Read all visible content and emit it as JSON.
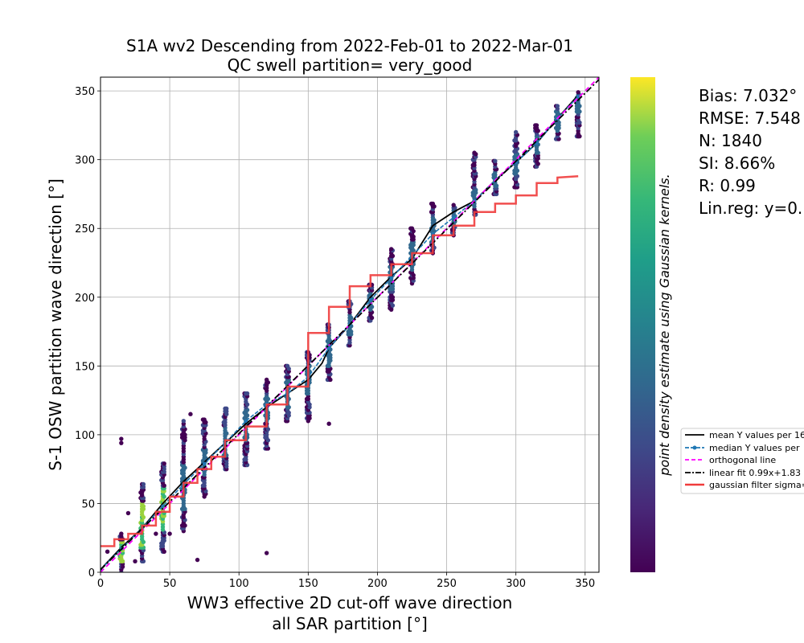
{
  "chart_data": {
    "type": "scatter",
    "title_line1": "S1A wv2 Descending from 2022-Feb-01 to 2022-Mar-01",
    "title_line2": "QC swell partition= very_good",
    "xlabel_line1": "WW3 effective 2D cut-off wave direction",
    "xlabel_line2": "all SAR partition [°]",
    "ylabel": "S-1 OSW partition wave direction [°]",
    "colorbar_label": "point density estimate using Gaussian kernels.",
    "xlim": [
      0,
      360
    ],
    "ylim": [
      0,
      360
    ],
    "xticks": [
      0,
      50,
      100,
      150,
      200,
      250,
      300,
      350
    ],
    "yticks": [
      0,
      50,
      100,
      150,
      200,
      250,
      300,
      350
    ],
    "grid": true,
    "colormap": "viridis",
    "stats": {
      "bias": "Bias: 7.032°",
      "rmse": "RMSE: 7.548",
      "n": "N: 1840",
      "si": "SI: 8.66%",
      "r": "R: 0.99",
      "linreg": "Lin.reg: y=0."
    },
    "legend_position": "right",
    "series": [
      {
        "name": "mean Y values per 16",
        "color": "#000000",
        "style": "solid",
        "x": [
          0,
          15,
          30,
          45,
          60,
          75,
          90,
          105,
          120,
          135,
          150,
          160,
          165,
          180,
          195,
          210,
          225,
          240,
          255,
          270,
          285,
          300,
          315,
          330,
          345
        ],
        "y": [
          2,
          18,
          32,
          50,
          66,
          80,
          94,
          108,
          120,
          130,
          140,
          152,
          163,
          180,
          200,
          215,
          228,
          252,
          262,
          270,
          285,
          298,
          312,
          330,
          347
        ]
      },
      {
        "name": "median Y values per",
        "color": "#1f77b4",
        "style": "dashed-marker",
        "x": [
          0,
          15,
          30,
          45,
          60,
          75,
          90,
          105,
          120,
          135,
          150,
          165,
          180,
          195,
          210,
          225,
          240,
          255,
          270,
          285,
          300,
          315,
          330,
          345
        ],
        "y": [
          2,
          17,
          32,
          48,
          64,
          79,
          94,
          110,
          122,
          130,
          142,
          163,
          180,
          198,
          214,
          230,
          246,
          258,
          270,
          285,
          298,
          312,
          330,
          346
        ]
      },
      {
        "name": "orthogonal line",
        "color": "#ff00ff",
        "style": "dashed",
        "x": [
          0,
          360
        ],
        "y": [
          0,
          360
        ]
      },
      {
        "name": "linear fit 0.99x+1.83",
        "color": "#000000",
        "style": "dashdot",
        "x": [
          0,
          360
        ],
        "y": [
          1.83,
          358.23
        ]
      },
      {
        "name": "gaussian filter sigma=",
        "color": "#f03c3c",
        "style": "solid-thick",
        "x": [
          0,
          10,
          10,
          20,
          20,
          30,
          30,
          40,
          40,
          50,
          50,
          60,
          60,
          70,
          70,
          80,
          80,
          90,
          90,
          105,
          105,
          120,
          120,
          135,
          135,
          150,
          150,
          165,
          165,
          180,
          180,
          195,
          195,
          210,
          210,
          225,
          225,
          240,
          240,
          255,
          255,
          270,
          270,
          285,
          285,
          300,
          300,
          315,
          315,
          330,
          330,
          345
        ],
        "y": [
          19,
          19,
          24,
          24,
          28,
          28,
          34,
          34,
          44,
          44,
          55,
          55,
          65,
          65,
          75,
          75,
          84,
          84,
          96,
          96,
          106,
          106,
          122,
          122,
          135,
          135,
          174,
          174,
          193,
          193,
          208,
          208,
          216,
          216,
          224,
          224,
          232,
          232,
          245,
          245,
          252,
          252,
          262,
          262,
          268,
          268,
          274,
          274,
          283,
          283,
          287,
          288
        ]
      }
    ],
    "scatter_columns": [
      {
        "x": 15,
        "y_from": 0,
        "y_to": 28,
        "dense_from": 8,
        "dense_to": 22
      },
      {
        "x": 30,
        "y_from": 8,
        "y_to": 64,
        "dense_from": 18,
        "dense_to": 50
      },
      {
        "x": 45,
        "y_from": 15,
        "y_to": 80,
        "dense_from": 30,
        "dense_to": 62
      },
      {
        "x": 60,
        "y_from": 30,
        "y_to": 110,
        "dense_from": 45,
        "dense_to": 78
      },
      {
        "x": 75,
        "y_from": 55,
        "y_to": 112,
        "dense_from": 70,
        "dense_to": 90
      },
      {
        "x": 90,
        "y_from": 75,
        "y_to": 120,
        "dense_from": 85,
        "dense_to": 105
      },
      {
        "x": 105,
        "y_from": 78,
        "y_to": 130,
        "dense_from": 95,
        "dense_to": 118
      },
      {
        "x": 120,
        "y_from": 90,
        "y_to": 140,
        "dense_from": 110,
        "dense_to": 128
      },
      {
        "x": 135,
        "y_from": 110,
        "y_to": 150,
        "dense_from": 120,
        "dense_to": 140
      },
      {
        "x": 150,
        "y_from": 110,
        "y_to": 160,
        "dense_from": 130,
        "dense_to": 150
      },
      {
        "x": 165,
        "y_from": 140,
        "y_to": 180,
        "dense_from": 150,
        "dense_to": 172
      },
      {
        "x": 180,
        "y_from": 165,
        "y_to": 198,
        "dense_from": 172,
        "dense_to": 188
      },
      {
        "x": 195,
        "y_from": 183,
        "y_to": 210,
        "dense_from": 190,
        "dense_to": 204
      },
      {
        "x": 210,
        "y_from": 192,
        "y_to": 235,
        "dense_from": 205,
        "dense_to": 222
      },
      {
        "x": 225,
        "y_from": 210,
        "y_to": 250,
        "dense_from": 220,
        "dense_to": 240
      },
      {
        "x": 240,
        "y_from": 232,
        "y_to": 268,
        "dense_from": 240,
        "dense_to": 258
      },
      {
        "x": 255,
        "y_from": 245,
        "y_to": 268,
        "dense_from": 252,
        "dense_to": 264
      },
      {
        "x": 270,
        "y_from": 260,
        "y_to": 305,
        "dense_from": 265,
        "dense_to": 278
      },
      {
        "x": 285,
        "y_from": 275,
        "y_to": 300,
        "dense_from": 280,
        "dense_to": 292
      },
      {
        "x": 300,
        "y_from": 280,
        "y_to": 320,
        "dense_from": 290,
        "dense_to": 305
      },
      {
        "x": 315,
        "y_from": 295,
        "y_to": 325,
        "dense_from": 305,
        "dense_to": 318
      },
      {
        "x": 330,
        "y_from": 315,
        "y_to": 340,
        "dense_from": 320,
        "dense_to": 335
      },
      {
        "x": 345,
        "y_from": 317,
        "y_to": 350,
        "dense_from": 335,
        "dense_to": 348
      }
    ],
    "outliers": [
      {
        "x": 15,
        "y": 97
      },
      {
        "x": 15,
        "y": 94
      },
      {
        "x": 20,
        "y": 43
      },
      {
        "x": 25,
        "y": 8
      },
      {
        "x": 70,
        "y": 9
      },
      {
        "x": 120,
        "y": 14
      },
      {
        "x": 65,
        "y": 115
      },
      {
        "x": 165,
        "y": 108
      },
      {
        "x": 210,
        "y": 191
      },
      {
        "x": 210,
        "y": 235
      },
      {
        "x": 270,
        "y": 305
      },
      {
        "x": 345,
        "y": 317
      },
      {
        "x": 5,
        "y": 15
      },
      {
        "x": 40,
        "y": 28
      },
      {
        "x": 50,
        "y": 28
      }
    ]
  }
}
